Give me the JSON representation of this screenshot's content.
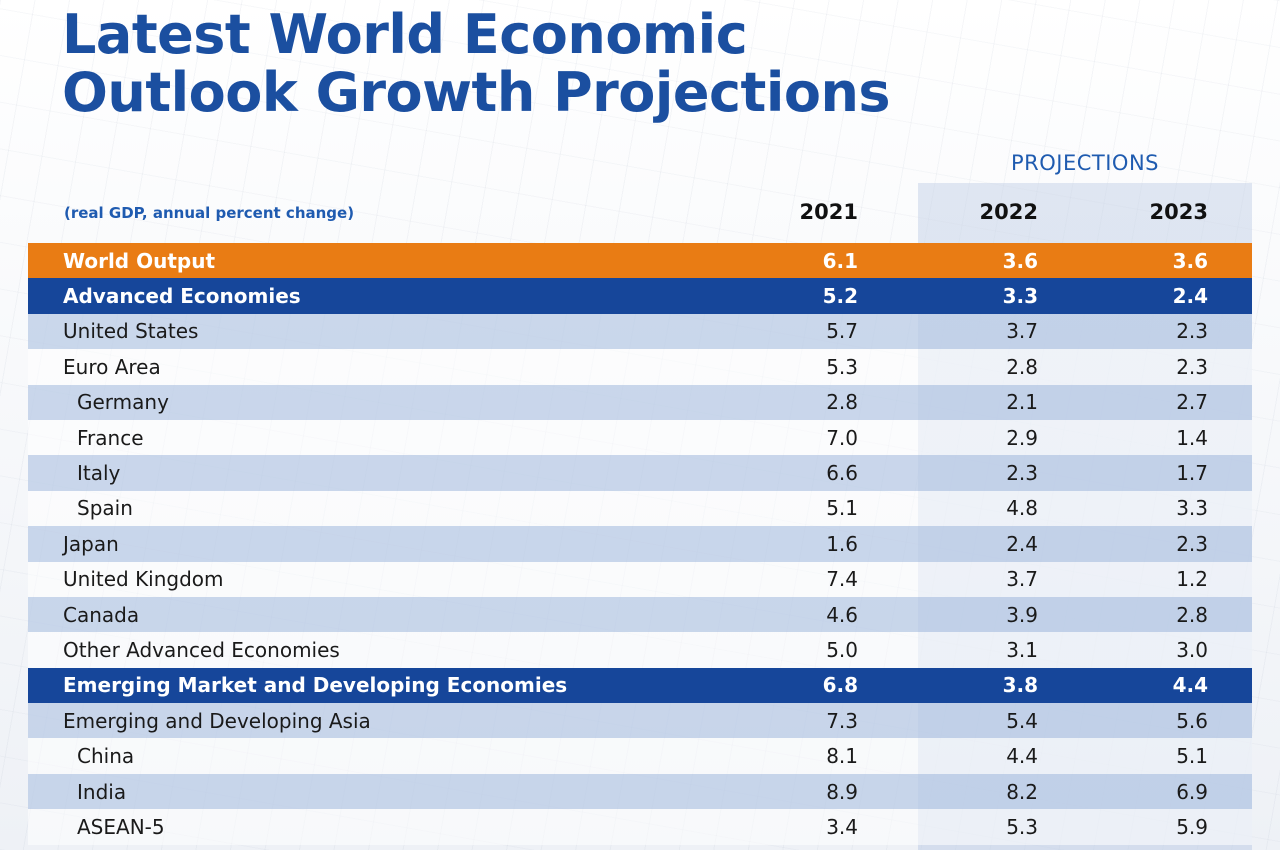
{
  "title": {
    "line1": "Latest World Economic",
    "line2": "Outlook Growth Projections"
  },
  "header": {
    "projections": "PROJECTIONS",
    "units": "(real GDP, annual percent change)",
    "years": [
      "2021",
      "2022",
      "2023"
    ]
  },
  "colors": {
    "title": "#1b4fa0",
    "world_row": "#e97c14",
    "region_row": "#16469a",
    "alt_row": "#bacbe5"
  },
  "chart_data": {
    "type": "table",
    "title": "Latest World Economic Outlook Growth Projections",
    "subtitle": "(real GDP, annual percent change)",
    "columns": [
      "2021",
      "2022",
      "2023"
    ],
    "rows": [
      {
        "label": "World Output",
        "values": [
          "6.1",
          "3.6",
          "3.6"
        ],
        "kind": "world"
      },
      {
        "label": "Advanced Economies",
        "values": [
          "5.2",
          "3.3",
          "2.4"
        ],
        "kind": "region"
      },
      {
        "label": "United States",
        "values": [
          "5.7",
          "3.7",
          "2.3"
        ],
        "kind": "alt"
      },
      {
        "label": "Euro Area",
        "values": [
          "5.3",
          "2.8",
          "2.3"
        ],
        "kind": "plain"
      },
      {
        "label": "Germany",
        "values": [
          "2.8",
          "2.1",
          "2.7"
        ],
        "kind": "alt",
        "sub": true
      },
      {
        "label": "France",
        "values": [
          "7.0",
          "2.9",
          "1.4"
        ],
        "kind": "plain",
        "sub": true
      },
      {
        "label": "Italy",
        "values": [
          "6.6",
          "2.3",
          "1.7"
        ],
        "kind": "alt",
        "sub": true
      },
      {
        "label": "Spain",
        "values": [
          "5.1",
          "4.8",
          "3.3"
        ],
        "kind": "plain",
        "sub": true
      },
      {
        "label": "Japan",
        "values": [
          "1.6",
          "2.4",
          "2.3"
        ],
        "kind": "alt"
      },
      {
        "label": "United Kingdom",
        "values": [
          "7.4",
          "3.7",
          "1.2"
        ],
        "kind": "plain"
      },
      {
        "label": "Canada",
        "values": [
          "4.6",
          "3.9",
          "2.8"
        ],
        "kind": "alt"
      },
      {
        "label": "Other Advanced Economies",
        "values": [
          "5.0",
          "3.1",
          "3.0"
        ],
        "kind": "plain"
      },
      {
        "label": "Emerging Market and Developing Economies",
        "values": [
          "6.8",
          "3.8",
          "4.4"
        ],
        "kind": "region"
      },
      {
        "label": "Emerging and Developing Asia",
        "values": [
          "7.3",
          "5.4",
          "5.6"
        ],
        "kind": "alt"
      },
      {
        "label": "China",
        "values": [
          "8.1",
          "4.4",
          "5.1"
        ],
        "kind": "plain",
        "sub": true
      },
      {
        "label": "India",
        "values": [
          "8.9",
          "8.2",
          "6.9"
        ],
        "kind": "alt",
        "sub": true
      },
      {
        "label": "ASEAN-5",
        "values": [
          "3.4",
          "5.3",
          "5.9"
        ],
        "kind": "plain",
        "sub": true
      }
    ]
  }
}
